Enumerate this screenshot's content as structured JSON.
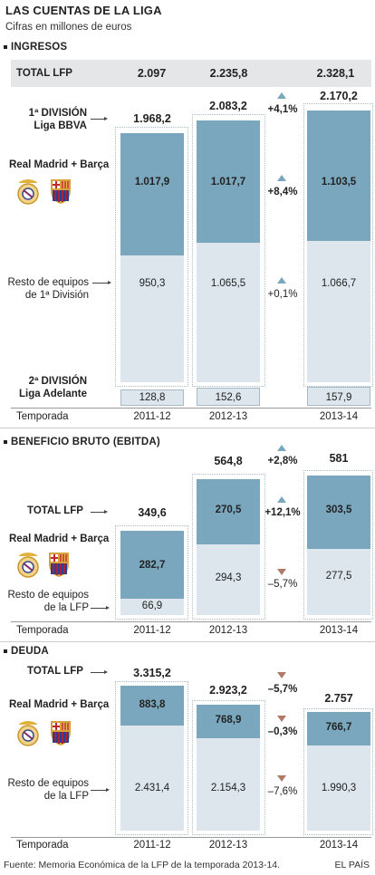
{
  "title": "LAS CUENTAS DE LA LIGA",
  "subtitle": "Cifras en millones de euros",
  "footer": {
    "source": "Fuente: Memoria Económica de la LFP de la temporada 2013-14.",
    "brand": "EL PAÍS"
  },
  "colors": {
    "top_segment": "#7aa7bd",
    "bottom_segment": "#dde6ec",
    "up_arrow": "#7aa7bd",
    "down_arrow": "#b07a66"
  },
  "icons": [
    "real-madrid-crest-icon",
    "fc-barcelona-crest-icon"
  ],
  "axis_label": "Temporada",
  "chart_data": [
    {
      "type": "bar",
      "title": "INGRESOS",
      "categories": [
        "2011-12",
        "2012-13",
        "2013-14"
      ],
      "total_label": "TOTAL LFP",
      "totals": [
        "2.097",
        "2.235,8",
        "2.328,1"
      ],
      "primera": {
        "label_line1": "1ª DIVISIÓN",
        "label_line2": "Liga BBVA",
        "totals": [
          "1.968,2",
          "2.083,2",
          "2.170,2"
        ],
        "values": [
          1968.2,
          2083.2,
          2170.2
        ]
      },
      "series": [
        {
          "name": "Real Madrid + Barça",
          "values": [
            1017.9,
            1017.7,
            1103.5
          ],
          "labels": [
            "1.017,9",
            "1.017,7",
            "1.103,5"
          ]
        },
        {
          "name_line1": "Resto de equipos",
          "name_line2": "de 1ª División",
          "values": [
            950.3,
            1065.5,
            1066.7
          ],
          "labels": [
            "950,3",
            "1.065,5",
            "1.066,7"
          ]
        }
      ],
      "segunda": {
        "label_line1": "2ª DIVISIÓN",
        "label_line2": "Liga Adelante",
        "values": [
          128.8,
          152.6,
          157.9
        ],
        "labels": [
          "128,8",
          "152,6",
          "157,9"
        ]
      },
      "changes": [
        {
          "text": "+4,1%",
          "dir": "up"
        },
        {
          "text": "+8,4%",
          "dir": "up"
        },
        {
          "text": "+0,1%",
          "dir": "up"
        }
      ]
    },
    {
      "type": "bar",
      "title": "BENEFICIO BRUTO (EBITDA)",
      "categories": [
        "2011-12",
        "2012-13",
        "2013-14"
      ],
      "total_label": "TOTAL LFP",
      "totals": [
        "349,6",
        "564,8",
        "581"
      ],
      "total_values": [
        349.6,
        564.8,
        581
      ],
      "series": [
        {
          "name": "Real Madrid + Barça",
          "values": [
            282.7,
            270.5,
            303.5
          ],
          "labels": [
            "282,7",
            "270,5",
            "303,5"
          ]
        },
        {
          "name_line1": "Resto de equipos",
          "name_line2": "de la LFP",
          "values": [
            66.9,
            294.3,
            277.5
          ],
          "labels": [
            "66,9",
            "294,3",
            "277,5"
          ]
        }
      ],
      "changes": [
        {
          "text": "+2,8%",
          "dir": "up"
        },
        {
          "text": "+12,1%",
          "dir": "up"
        },
        {
          "text": "–5,7%",
          "dir": "down"
        }
      ]
    },
    {
      "type": "bar",
      "title": "DEUDA",
      "categories": [
        "2011-12",
        "2012-13",
        "2013-14"
      ],
      "total_label": "TOTAL LFP",
      "totals": [
        "3.315,2",
        "2.923,2",
        "2.757"
      ],
      "total_values": [
        3315.2,
        2923.2,
        2757
      ],
      "series": [
        {
          "name": "Real Madrid + Barça",
          "values": [
            883.8,
            768.9,
            766.7
          ],
          "labels": [
            "883,8",
            "768,9",
            "766,7"
          ]
        },
        {
          "name_line1": "Resto de equipos",
          "name_line2": "de la LFP",
          "values": [
            2431.4,
            2154.3,
            1990.3
          ],
          "labels": [
            "2.431,4",
            "2.154,3",
            "1.990,3"
          ]
        }
      ],
      "changes": [
        {
          "text": "–5,7%",
          "dir": "down"
        },
        {
          "text": "–0,3%",
          "dir": "down"
        },
        {
          "text": "–7,6%",
          "dir": "down"
        }
      ]
    }
  ]
}
